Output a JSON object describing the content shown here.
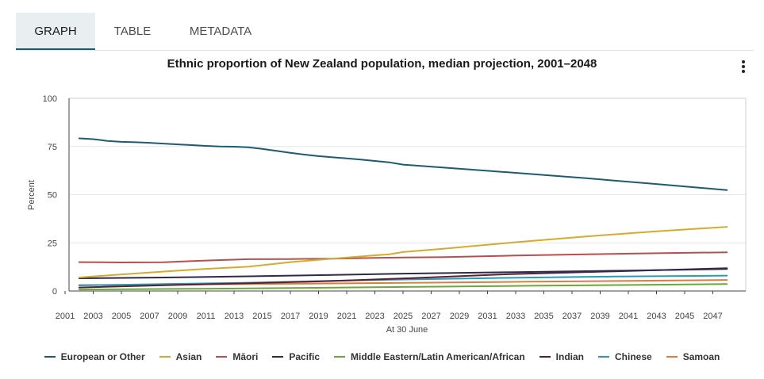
{
  "tabs": [
    {
      "label": "GRAPH"
    },
    {
      "label": "TABLE"
    },
    {
      "label": "METADATA"
    }
  ],
  "chart_data": {
    "type": "line",
    "title": "Ethnic proportion of New Zealand population, median projection, 2001–2048",
    "xlabel": "At 30 June",
    "ylabel": "Percent",
    "xlim": [
      2001,
      2049
    ],
    "ylim": [
      0,
      100
    ],
    "xticks": [
      2001,
      2003,
      2005,
      2007,
      2009,
      2011,
      2013,
      2015,
      2017,
      2019,
      2021,
      2023,
      2025,
      2027,
      2029,
      2031,
      2033,
      2035,
      2037,
      2039,
      2041,
      2043,
      2045,
      2047
    ],
    "yticks": [
      0,
      25,
      50,
      75,
      100
    ],
    "legend_position": "bottom",
    "series": [
      {
        "name": "European or Other",
        "color": "#1d5b6e",
        "x": [
          2002,
          2003,
          2004,
          2005,
          2006,
          2007,
          2008,
          2009,
          2010,
          2011,
          2012,
          2013,
          2014,
          2015,
          2016,
          2017,
          2018,
          2019,
          2020,
          2021,
          2022,
          2023,
          2024,
          2025,
          2028,
          2033,
          2038,
          2043,
          2048
        ],
        "y": [
          79.2,
          78.8,
          77.9,
          77.4,
          77.2,
          76.9,
          76.5,
          76.1,
          75.7,
          75.3,
          75.0,
          74.9,
          74.6,
          73.8,
          72.7,
          71.7,
          70.8,
          70.0,
          69.4,
          68.8,
          68.2,
          67.5,
          66.8,
          65.6,
          64.0,
          61.3,
          58.5,
          55.5,
          52.4
        ]
      },
      {
        "name": "Asian",
        "color": "#d5ab2f",
        "x": [
          2002,
          2005,
          2008,
          2011,
          2014,
          2017,
          2020,
          2023,
          2024,
          2025,
          2028,
          2033,
          2038,
          2043,
          2048
        ],
        "y": [
          7.0,
          8.6,
          10.1,
          11.5,
          12.6,
          15.0,
          16.8,
          18.5,
          19.0,
          20.2,
          22.0,
          25.3,
          28.3,
          31.0,
          33.3
        ]
      },
      {
        "name": "Māori",
        "color": "#b5504f",
        "x": [
          2002,
          2005,
          2008,
          2011,
          2014,
          2017,
          2020,
          2023,
          2028,
          2033,
          2038,
          2043,
          2048
        ],
        "y": [
          15.0,
          14.8,
          14.9,
          15.8,
          16.5,
          16.6,
          16.8,
          17.2,
          17.6,
          18.4,
          19.0,
          19.6,
          20.1
        ]
      },
      {
        "name": "Pacific",
        "color": "#2d2b4d",
        "x": [
          2002,
          2008,
          2014,
          2020,
          2025,
          2033,
          2041,
          2048
        ],
        "y": [
          6.6,
          7.0,
          7.6,
          8.3,
          9.0,
          9.8,
          10.6,
          11.4
        ]
      },
      {
        "name": "Middle Eastern/Latin American/African",
        "color": "#6aa83a",
        "x": [
          2002,
          2010,
          2018,
          2026,
          2034,
          2042,
          2048
        ],
        "y": [
          0.8,
          1.1,
          1.6,
          2.2,
          2.7,
          3.2,
          3.6
        ]
      },
      {
        "name": "Indian",
        "color": "#5a1f33",
        "x": [
          2002,
          2008,
          2014,
          2020,
          2026,
          2032,
          2040,
          2048
        ],
        "y": [
          1.8,
          3.0,
          4.0,
          5.2,
          6.8,
          8.6,
          10.2,
          11.8
        ]
      },
      {
        "name": "Chinese",
        "color": "#2b9bb5",
        "x": [
          2002,
          2008,
          2014,
          2020,
          2026,
          2032,
          2040,
          2048
        ],
        "y": [
          2.9,
          3.6,
          4.3,
          5.3,
          6.1,
          6.8,
          7.5,
          8.0
        ]
      },
      {
        "name": "Samoan",
        "color": "#e07b3a",
        "x": [
          2002,
          2010,
          2018,
          2026,
          2034,
          2042,
          2048
        ],
        "y": [
          3.1,
          3.4,
          3.8,
          4.3,
          4.8,
          5.3,
          5.7
        ]
      }
    ]
  }
}
